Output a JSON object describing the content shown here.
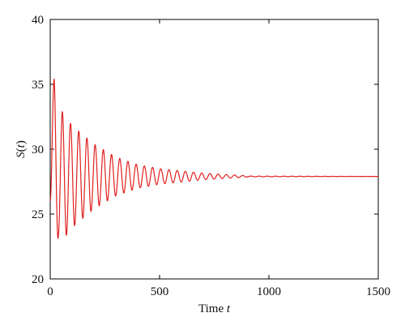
{
  "chart_data": {
    "type": "line",
    "title": "",
    "xlabel": {
      "text": "Time ",
      "var": "t"
    },
    "ylabel": {
      "func": "S",
      "open": "(",
      "var": "t",
      "close": ")"
    },
    "xlim": [
      0,
      1500
    ],
    "ylim": [
      20,
      40
    ],
    "xticks": [
      0,
      500,
      1000,
      1500
    ],
    "xtick_labels": [
      "0",
      "500",
      "1000",
      "1500"
    ],
    "yticks": [
      20,
      25,
      30,
      35,
      40
    ],
    "ytick_labels": [
      "20",
      "25",
      "30",
      "35",
      "40"
    ],
    "grid": false,
    "series": [
      {
        "color": "#e02020",
        "model": {
          "kind": "damped_oscillation",
          "equilibrium": 27.9,
          "initial_value": 26.0,
          "first_peak": {
            "x": 18,
            "y": 35.4
          },
          "first_trough": {
            "x": 38,
            "y": 23.4
          },
          "period": 37.5,
          "settle_by": 900
        },
        "envelope_points": [
          {
            "x": 18,
            "y": 35.4
          },
          {
            "x": 38,
            "y": 23.4
          },
          {
            "x": 55,
            "y": 32.9
          },
          {
            "x": 92,
            "y": 32.0
          },
          {
            "x": 130,
            "y": 31.4
          },
          {
            "x": 200,
            "y": 30.4
          },
          {
            "x": 300,
            "y": 29.4
          },
          {
            "x": 400,
            "y": 28.8
          },
          {
            "x": 500,
            "y": 28.5
          },
          {
            "x": 700,
            "y": 28.15
          },
          {
            "x": 900,
            "y": 27.95
          },
          {
            "x": 1500,
            "y": 27.9
          }
        ]
      }
    ]
  }
}
